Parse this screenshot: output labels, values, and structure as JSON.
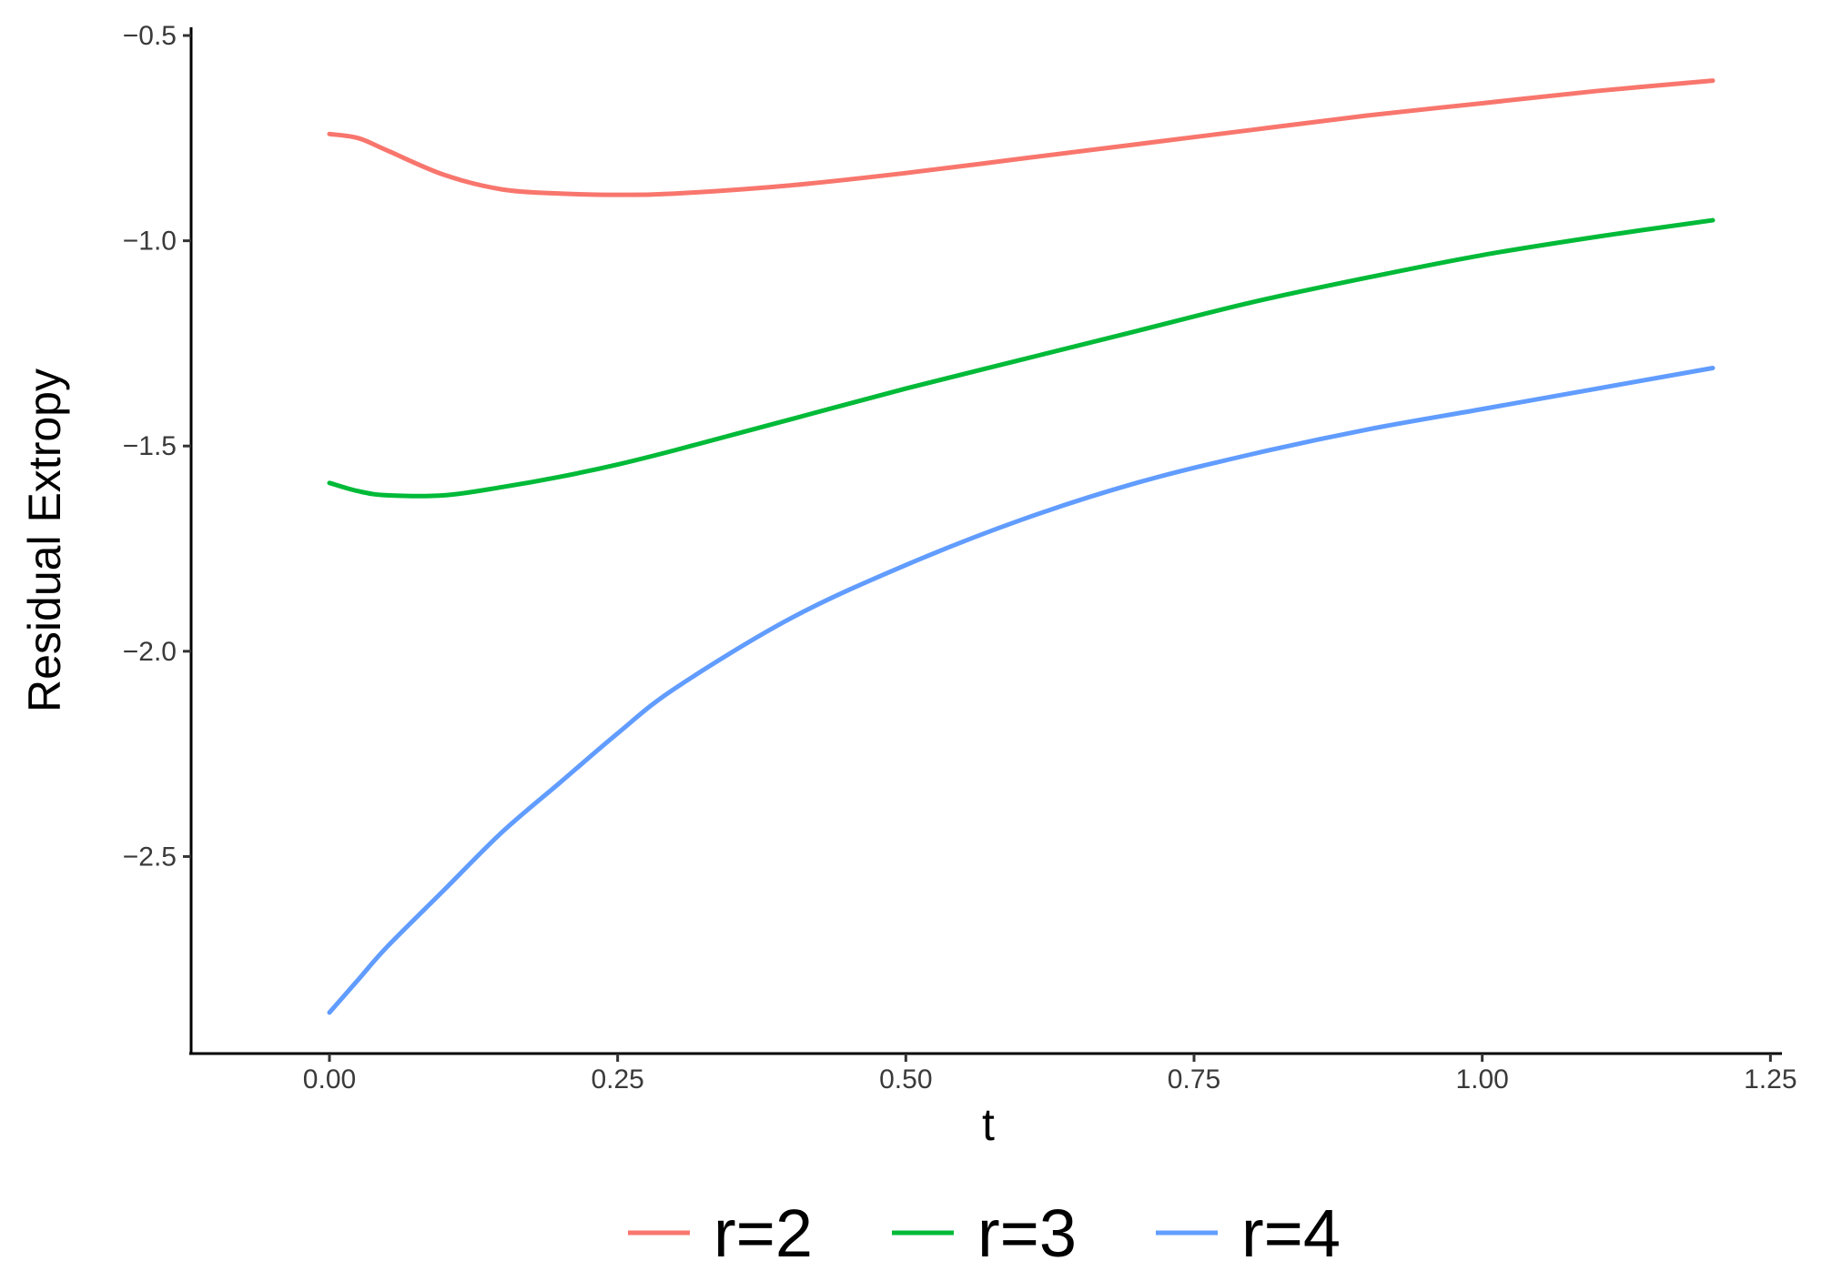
{
  "chart_data": {
    "type": "line",
    "title": "",
    "xlabel": "t",
    "ylabel": "Residual Extropy",
    "xlim": [
      -0.12,
      1.26
    ],
    "ylim": [
      -2.98,
      -0.48
    ],
    "x_ticks": [
      0.0,
      0.25,
      0.5,
      0.75,
      1.0,
      1.25
    ],
    "x_tick_labels": [
      "0.00",
      "0.25",
      "0.50",
      "0.75",
      "1.00",
      "1.25"
    ],
    "y_ticks": [
      -0.5,
      -1.0,
      -1.5,
      -2.0,
      -2.5
    ],
    "y_tick_labels": [
      "−0.5",
      "−1.0",
      "−1.5",
      "−2.0",
      "−2.5"
    ],
    "grid": false,
    "legend_position": "bottom",
    "x": [
      0.0,
      0.025,
      0.05,
      0.1,
      0.15,
      0.2,
      0.25,
      0.3,
      0.4,
      0.5,
      0.6,
      0.7,
      0.8,
      0.9,
      1.0,
      1.1,
      1.2
    ],
    "series": [
      {
        "name": "r=2",
        "color": "#f8766d",
        "values": [
          -0.74,
          -0.75,
          -0.78,
          -0.84,
          -0.875,
          -0.885,
          -0.888,
          -0.885,
          -0.865,
          -0.835,
          -0.8,
          -0.765,
          -0.73,
          -0.695,
          -0.665,
          -0.635,
          -0.61
        ]
      },
      {
        "name": "r=3",
        "color": "#00ba38",
        "values": [
          -1.59,
          -1.61,
          -1.62,
          -1.62,
          -1.6,
          -1.575,
          -1.545,
          -1.51,
          -1.435,
          -1.36,
          -1.29,
          -1.22,
          -1.15,
          -1.09,
          -1.035,
          -0.99,
          -0.95
        ]
      },
      {
        "name": "r=4",
        "color": "#619cff",
        "values": [
          -2.88,
          -2.8,
          -2.72,
          -2.58,
          -2.44,
          -2.32,
          -2.2,
          -2.09,
          -1.92,
          -1.79,
          -1.68,
          -1.59,
          -1.52,
          -1.46,
          -1.41,
          -1.36,
          -1.31
        ]
      }
    ]
  }
}
